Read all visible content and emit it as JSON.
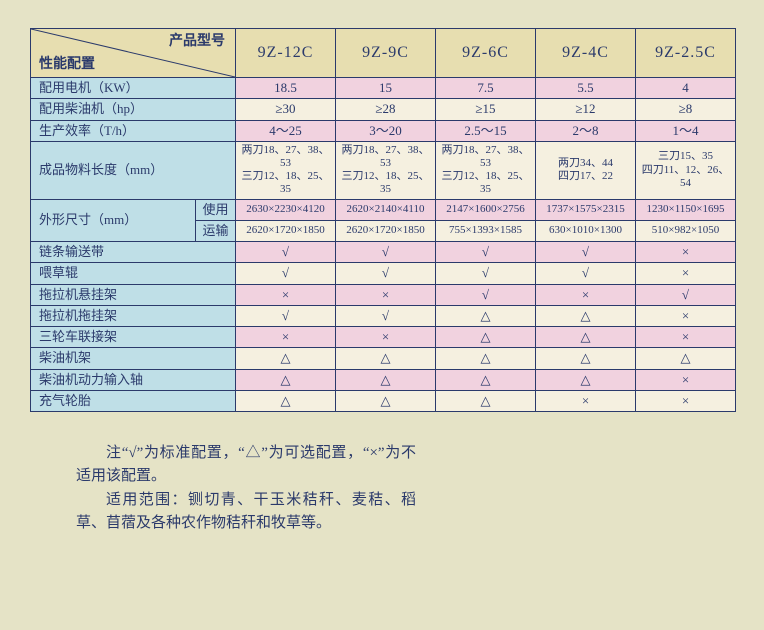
{
  "header": {
    "corner_top": "产品型号",
    "corner_bottom": "性能配置",
    "models": [
      "9Z-12C",
      "9Z-9C",
      "9Z-6C",
      "9Z-4C",
      "9Z-2.5C"
    ]
  },
  "rows": [
    {
      "label": "配用电机（KW）",
      "shade": "pink",
      "cells": [
        "18.5",
        "15",
        "7.5",
        "5.5",
        "4"
      ]
    },
    {
      "label": "配用柴油机（hp）",
      "shade": "white",
      "cells": [
        "≥30",
        "≥28",
        "≥15",
        "≥12",
        "≥8"
      ]
    },
    {
      "label": "生产效率（T/h）",
      "shade": "pink",
      "cells": [
        "4～25",
        "3～20",
        "2.5～15",
        "2～8",
        "1～4"
      ]
    },
    {
      "label": "成品物料长度（mm）",
      "shade": "white",
      "tall": true,
      "cells": [
        "两刀18、27、38、53\n三刀12、18、25、35",
        "两刀18、27、38、53\n三刀12、18、25、35",
        "两刀18、27、38、53\n三刀12、18、25、35",
        "两刀34、44\n四刀17、22",
        "三刀15、35\n四刀11、12、26、54"
      ]
    },
    {
      "label": "外形尺寸（mm）",
      "sub": [
        "使用",
        "运输"
      ],
      "shade": "white",
      "rows2": [
        {
          "shade": "pink",
          "cells": [
            "2630×2230×4120",
            "2620×2140×4110",
            "2147×1600×2756",
            "1737×1575×2315",
            "1230×1150×1695"
          ]
        },
        {
          "shade": "white",
          "cells": [
            "2620×1720×1850",
            "2620×1720×1850",
            "755×1393×1585",
            "630×1010×1300",
            "510×982×1050"
          ]
        }
      ]
    },
    {
      "label": "链条输送带",
      "shade": "pink",
      "cells": [
        "√",
        "√",
        "√",
        "√",
        "×"
      ]
    },
    {
      "label": "喂草辊",
      "shade": "white",
      "cells": [
        "√",
        "√",
        "√",
        "√",
        "×"
      ]
    },
    {
      "label": "拖拉机悬挂架",
      "shade": "pink",
      "cells": [
        "×",
        "×",
        "√",
        "×",
        "√"
      ]
    },
    {
      "label": "拖拉机拖挂架",
      "shade": "white",
      "cells": [
        "√",
        "√",
        "△",
        "△",
        "×"
      ]
    },
    {
      "label": "三轮车联接架",
      "shade": "pink",
      "cells": [
        "×",
        "×",
        "△",
        "△",
        "×"
      ]
    },
    {
      "label": "柴油机架",
      "shade": "white",
      "cells": [
        "△",
        "△",
        "△",
        "△",
        "△"
      ]
    },
    {
      "label": "柴油机动力输入轴",
      "shade": "pink",
      "cells": [
        "△",
        "△",
        "△",
        "△",
        "×"
      ]
    },
    {
      "label": "充气轮胎",
      "shade": "white",
      "cells": [
        "△",
        "△",
        "△",
        "×",
        "×"
      ]
    }
  ],
  "footnote": [
    "注“√”为标准配置，“△”为可选配置，“×”为不适用该配置。",
    "适用范围：铡切青、干玉米秸秆、麦秸、稻草、苜蓿及各种农作物秸秆和牧草等。"
  ],
  "colors": {
    "border": "#2b3a6b",
    "bg": "#e5e3c6",
    "header_bg": "#e7deb0",
    "rowlabel_bg": "#bfdfe7",
    "pink": "#f1d2df",
    "white": "#f5f0e0"
  },
  "col_widths": [
    "165",
    "40",
    "100",
    "100",
    "100",
    "100",
    "100"
  ]
}
